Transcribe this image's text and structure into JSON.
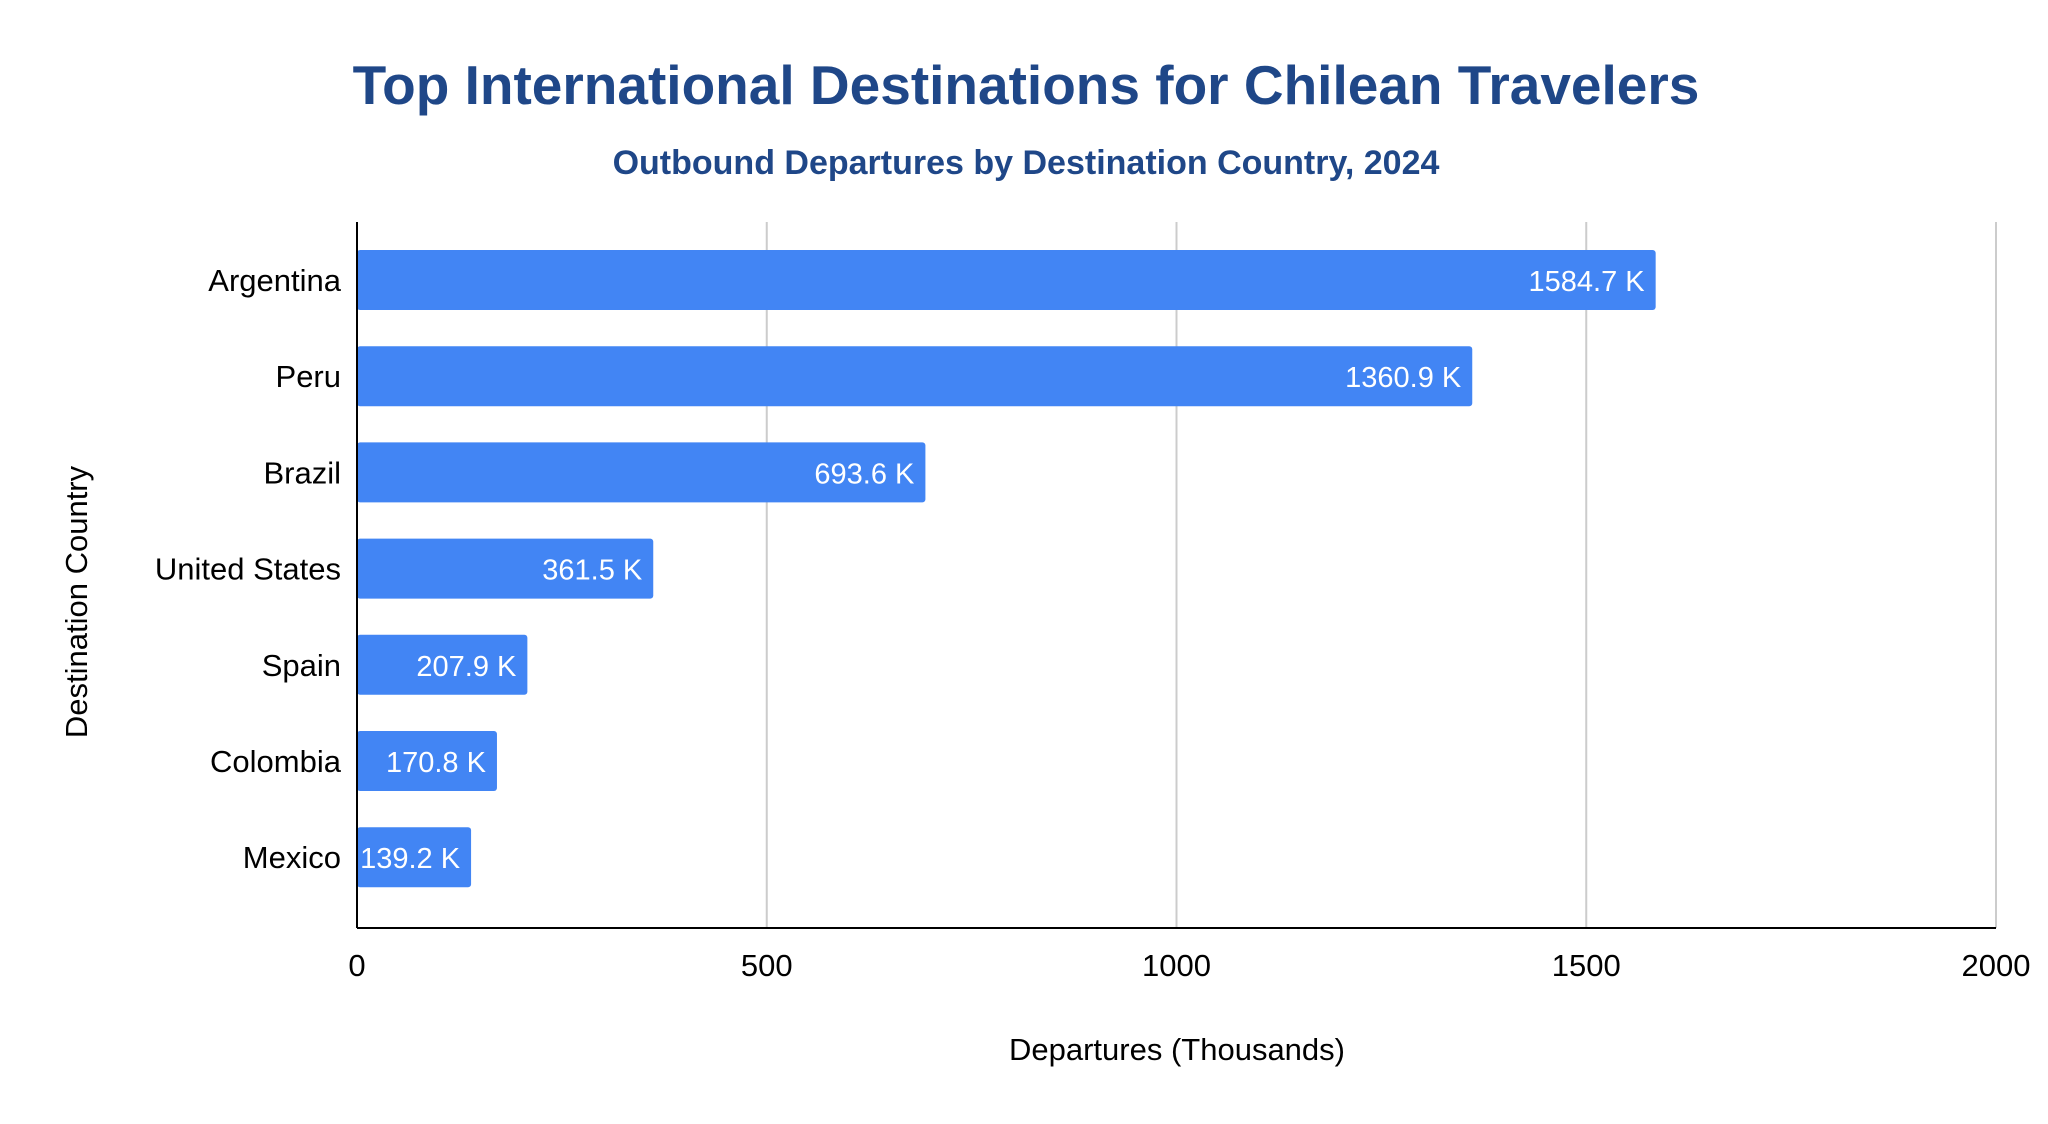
{
  "colors": {
    "title": "#1f4788",
    "bar": "#4285f4",
    "bar_label": "#ffffff",
    "axis_text": "#000000",
    "grid": "#cccccc",
    "axis_line": "#000000"
  },
  "chart_data": {
    "type": "bar",
    "orientation": "horizontal",
    "title": "Top International Destinations for Chilean Travelers",
    "subtitle": "Outbound Departures by Destination Country, 2024",
    "xlabel": "Departures (Thousands)",
    "ylabel": "Destination Country",
    "categories": [
      "Argentina",
      "Peru",
      "Brazil",
      "United States",
      "Spain",
      "Colombia",
      "Mexico"
    ],
    "values": [
      1584.7,
      1360.9,
      693.6,
      361.5,
      207.9,
      170.8,
      139.2
    ],
    "data_labels": [
      "1584.7 K",
      "1360.9 K",
      "693.6 K",
      "361.5 K",
      "207.9 K",
      "170.8 K",
      "139.2 K"
    ],
    "xlim": [
      0,
      2000
    ],
    "x_ticks": [
      "0",
      "500",
      "1000",
      "1500",
      "2000"
    ],
    "grid": true,
    "legend": "none"
  }
}
